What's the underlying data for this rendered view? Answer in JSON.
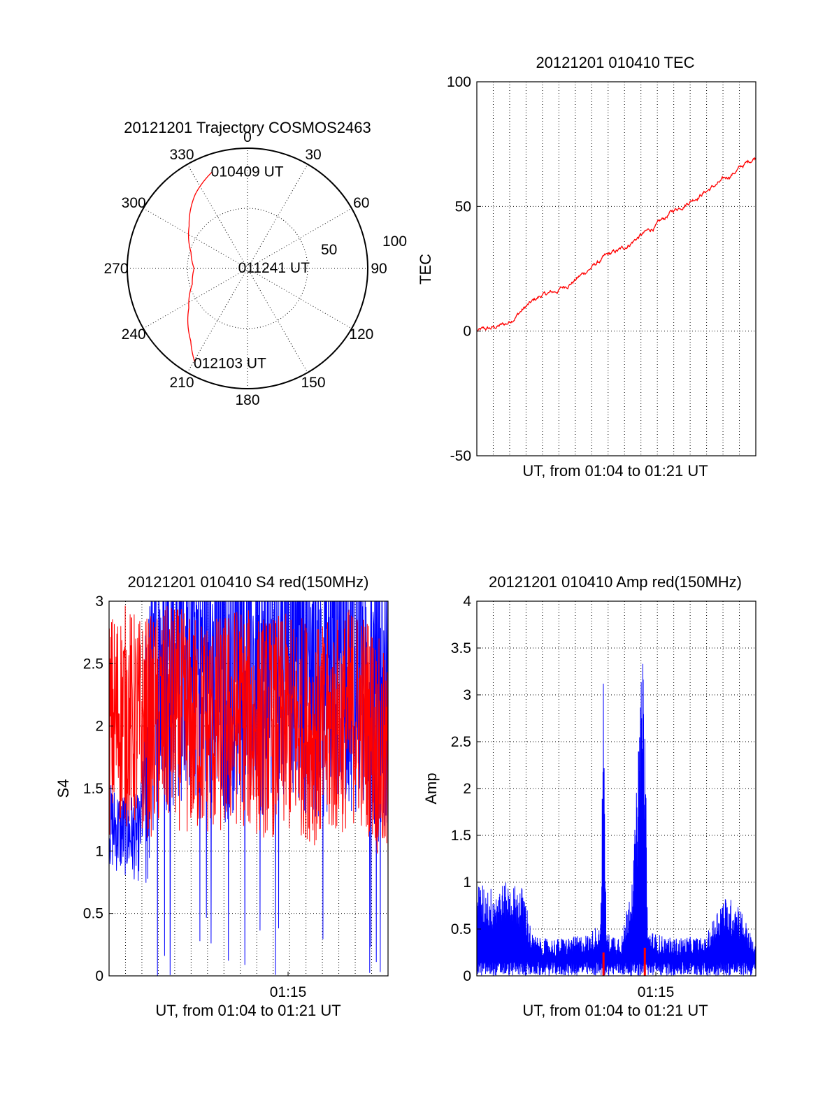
{
  "chart_data": [
    {
      "type": "polar",
      "title": "20121201 Trajectory COSMOS2463",
      "angle_labels": [
        "0",
        "30",
        "60",
        "90",
        "120",
        "150",
        "180",
        "210",
        "240",
        "270",
        "300",
        "330"
      ],
      "radial_labels": [
        "50",
        "100"
      ],
      "rlim": [
        0,
        90
      ],
      "angle_direction": "clockwise, 0 at top",
      "grid": true,
      "series": [
        {
          "color": "#ff0000",
          "points": [
            {
              "az": 340,
              "el": 13
            },
            {
              "az": 325,
              "el": 22
            },
            {
              "az": 306,
              "el": 36
            },
            {
              "az": 286,
              "el": 46
            },
            {
              "az": 270,
              "el": 50
            },
            {
              "az": 254,
              "el": 47
            },
            {
              "az": 236,
              "el": 37
            },
            {
              "az": 218,
              "el": 21
            },
            {
              "az": 209,
              "el": 9
            }
          ]
        }
      ],
      "annotations": [
        {
          "text": "010409 UT",
          "az": 340,
          "el": 13
        },
        {
          "text": "011241 UT",
          "az": 275,
          "el": 84
        },
        {
          "text": "012103 UT",
          "az": 209,
          "el": 9
        }
      ]
    },
    {
      "type": "line",
      "title": "20121201 010410 TEC",
      "xlabel": "UT, from 01:04 to 01:21 UT",
      "ylabel": "TEC",
      "xlim": [
        "01:04:10",
        "01:21:03"
      ],
      "ylim": [
        -50,
        100
      ],
      "yticks": [
        "-50",
        "0",
        "50",
        "100"
      ],
      "grid": true,
      "series": [
        {
          "color": "#ff0000",
          "x": [
            "01:04:10",
            "01:05:00",
            "01:06:00",
            "01:07:00",
            "01:08:00",
            "01:09:00",
            "01:10:00",
            "01:11:00",
            "01:12:00",
            "01:13:00",
            "01:14:00",
            "01:15:00",
            "01:16:00",
            "01:17:00",
            "01:18:00",
            "01:19:00",
            "01:20:00",
            "01:21:03"
          ],
          "values": [
            0,
            1,
            3,
            9,
            14,
            16,
            20,
            25,
            30,
            33,
            38,
            42,
            48,
            52,
            56,
            60,
            65,
            70
          ]
        }
      ]
    },
    {
      "type": "line",
      "title": "20121201 010410 S4 red(150MHz)",
      "xlabel": "UT, from 01:04 to 01:21 UT",
      "ylabel": "S4",
      "xlim": [
        "01:04:10",
        "01:21:03"
      ],
      "ylim": [
        0,
        3
      ],
      "yticks": [
        "0",
        "0.5",
        "1",
        "1.5",
        "2",
        "2.5",
        "3"
      ],
      "xticks": [
        "01:15"
      ],
      "grid": true,
      "series": [
        {
          "color": "#0000ff",
          "x": [
            "01:04:10",
            "01:05:00",
            "01:06:00",
            "01:07:00",
            "01:08:00",
            "01:09:00",
            "01:10:00",
            "01:11:00",
            "01:12:00",
            "01:13:00",
            "01:14:00",
            "01:15:00",
            "01:16:00",
            "01:17:00",
            "01:18:00",
            "01:19:00",
            "01:20:00",
            "01:21:03"
          ],
          "values": [
            1.2,
            1.15,
            1.1,
            2.4,
            2.5,
            2.6,
            2.5,
            2.3,
            2.6,
            2.4,
            2.5,
            2.7,
            2.5,
            2.4,
            2.6,
            2.5,
            2.3,
            2.2
          ]
        },
        {
          "color": "#ff0000",
          "x": [
            "01:04:10",
            "01:05:00",
            "01:06:00",
            "01:07:00",
            "01:08:00",
            "01:09:00",
            "01:10:00",
            "01:11:00",
            "01:12:00",
            "01:13:00",
            "01:14:00",
            "01:15:00",
            "01:16:00",
            "01:17:00",
            "01:18:00",
            "01:19:00",
            "01:20:00",
            "01:21:03"
          ],
          "values": [
            2.0,
            2.1,
            2.0,
            2.0,
            2.1,
            2.0,
            2.0,
            2.0,
            2.1,
            2.0,
            2.0,
            2.0,
            2.0,
            1.9,
            2.0,
            2.1,
            2.0,
            1.6
          ]
        }
      ]
    },
    {
      "type": "line",
      "title": "20121201 010410 Amp red(150MHz)",
      "xlabel": "UT, from 01:04 to 01:21 UT",
      "ylabel": "Amp",
      "xlim": [
        "01:04:10",
        "01:21:03"
      ],
      "ylim": [
        0,
        4
      ],
      "yticks": [
        "0",
        "0.5",
        "1",
        "1.5",
        "2",
        "2.5",
        "3",
        "3.5",
        "4"
      ],
      "xticks": [
        "01:15"
      ],
      "grid": true,
      "series": [
        {
          "color": "#0000ff",
          "x": [
            "01:04:10",
            "01:05:00",
            "01:06:00",
            "01:07:00",
            "01:07:30",
            "01:08:00",
            "01:09:00",
            "01:10:00",
            "01:11:00",
            "01:11:40",
            "01:11:50",
            "01:12:00",
            "01:13:00",
            "01:13:40",
            "01:14:10",
            "01:14:20",
            "01:14:30",
            "01:15:00",
            "01:16:00",
            "01:17:00",
            "01:18:00",
            "01:19:00",
            "01:20:00",
            "01:21:03"
          ],
          "values": [
            1.0,
            0.95,
            1.0,
            0.95,
            0.45,
            0.4,
            0.4,
            0.42,
            0.45,
            0.6,
            3.3,
            0.45,
            0.45,
            1.3,
            3.4,
            3.2,
            0.5,
            0.45,
            0.4,
            0.42,
            0.4,
            0.85,
            0.8,
            0.3
          ]
        }
      ],
      "highlights": [
        {
          "color": "#ff0000",
          "x": "01:11:50",
          "value": 0.25
        },
        {
          "color": "#ff0000",
          "x": "01:14:20",
          "value": 0.3
        }
      ]
    }
  ]
}
